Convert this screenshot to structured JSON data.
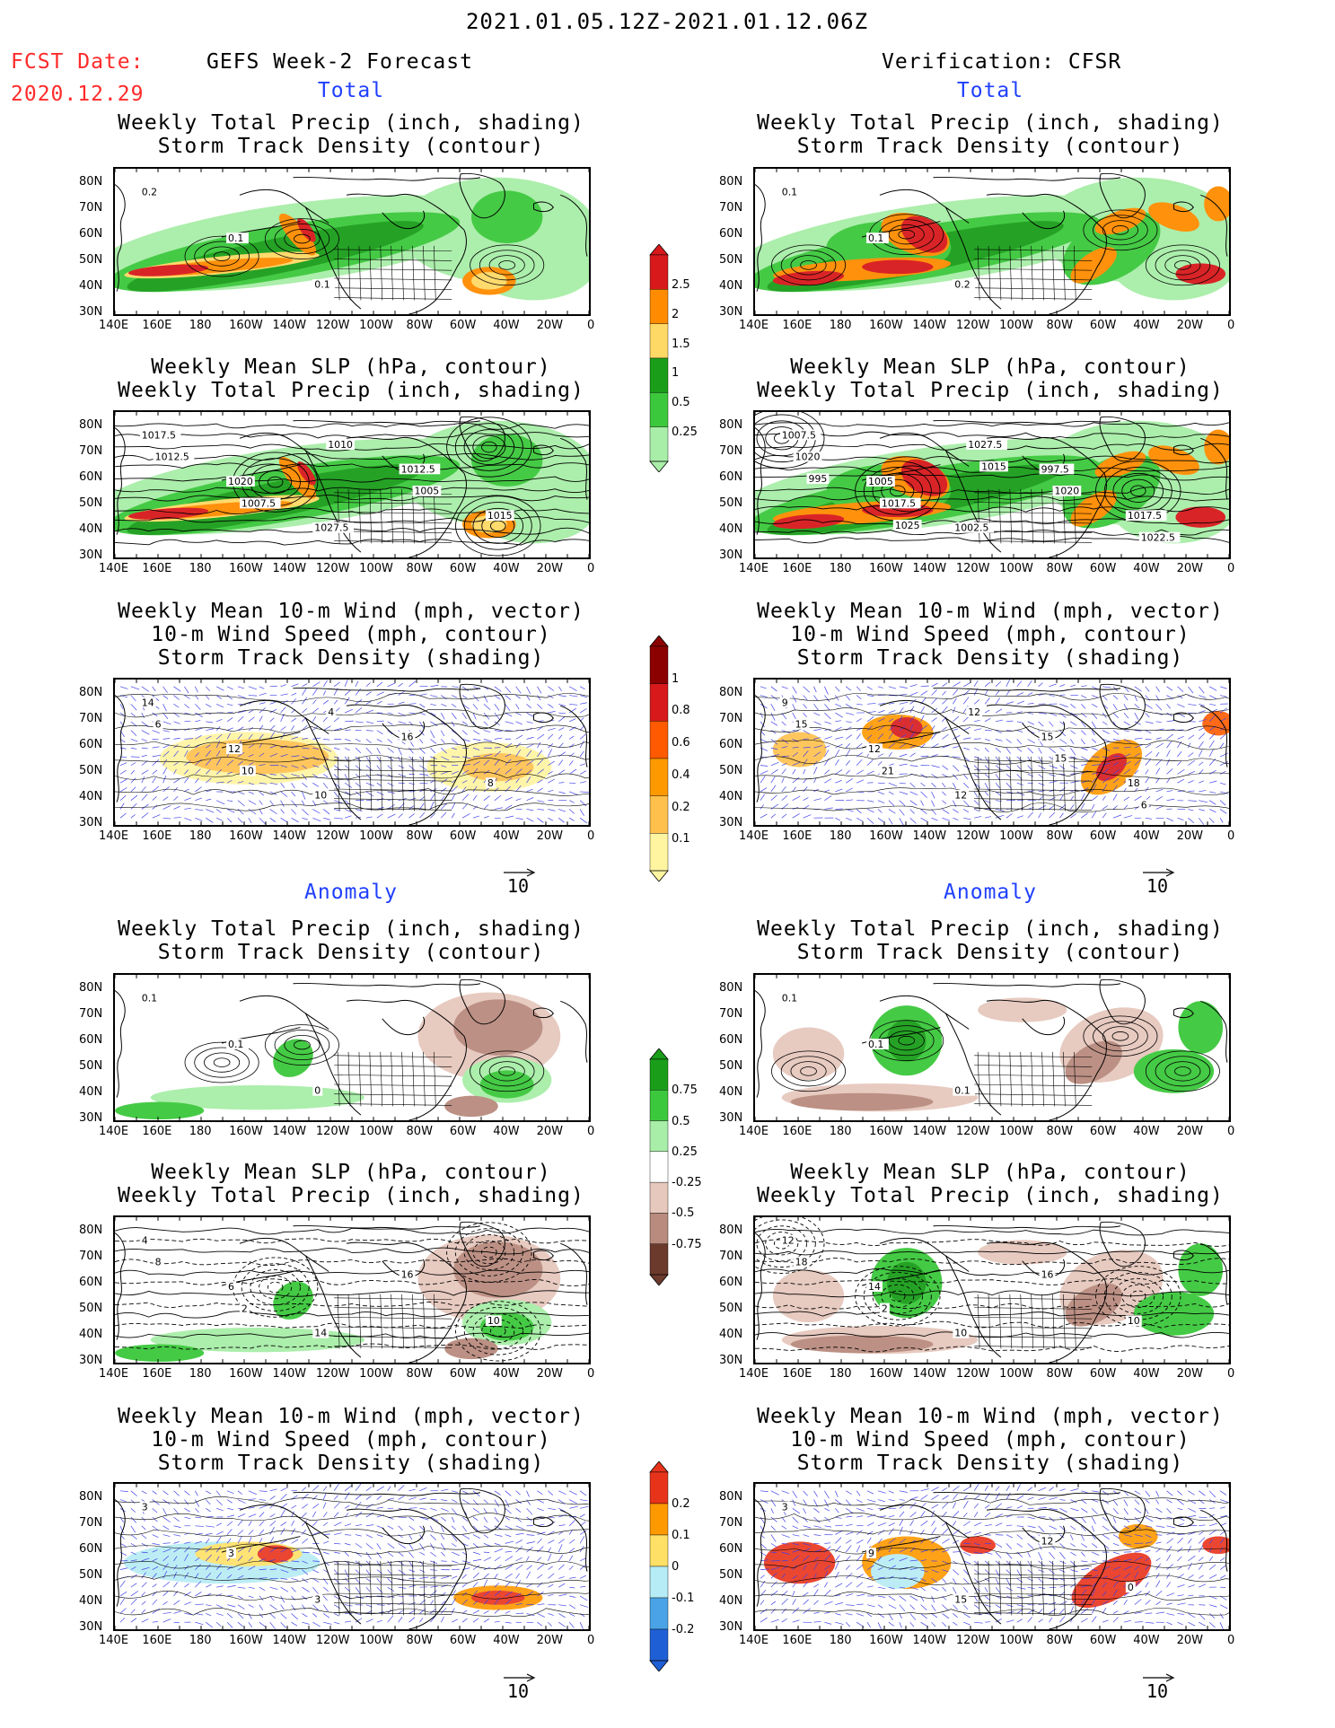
{
  "header": {
    "date_range": "2021.01.05.12Z-2021.01.12.06Z",
    "fcst_label": "FCST Date:",
    "fcst_date": "2020.12.29",
    "left_title": "GEFS Week-2 Forecast",
    "right_title": "Verification: CFSR",
    "total_label": "Total",
    "anomaly_label": "Anomaly"
  },
  "panel_titles": {
    "precip_storm": [
      "Weekly Total Precip (inch, shading)",
      "Storm Track Density (contour)"
    ],
    "slp_precip": [
      "Weekly Mean SLP (hPa, contour)",
      "Weekly Total Precip (inch, shading)"
    ],
    "wind_storm": [
      "Weekly Mean 10-m Wind (mph, vector)",
      "10-m Wind Speed (mph, contour)",
      "Storm Track Density (shading)"
    ]
  },
  "axes": {
    "lat_labels": [
      "80N",
      "70N",
      "60N",
      "50N",
      "40N",
      "30N"
    ],
    "lon_labels": [
      "140E",
      "160E",
      "180",
      "160W",
      "140W",
      "120W",
      "100W",
      "80W",
      "60W",
      "40W",
      "20W",
      "0"
    ]
  },
  "reference_vector": "10",
  "colorbars": {
    "total_precip": {
      "labels": [
        "2.5",
        "2",
        "1.5",
        "1",
        "0.5",
        "0.25"
      ],
      "colors": [
        "#d7191c",
        "#ff8c00",
        "#ffd966",
        "#1a9e1a",
        "#3cc83c",
        "#a8eea8"
      ]
    },
    "total_storm": {
      "labels": [
        "1",
        "0.8",
        "0.6",
        "0.4",
        "0.2",
        "0.1"
      ],
      "colors": [
        "#8b0000",
        "#d7191c",
        "#ff5a00",
        "#ff9900",
        "#ffc04c",
        "#fff5a0"
      ]
    },
    "anom_precip": {
      "labels": [
        "0.75",
        "0.5",
        "0.25",
        "-0.25",
        "-0.5",
        "-0.75"
      ],
      "colors": [
        "#1a9e1a",
        "#3cc83c",
        "#a8eea8",
        "#ffffff",
        "#e6c8bd",
        "#b98b7e",
        "#6b3a2c"
      ]
    },
    "anom_storm": {
      "labels": [
        "0.2",
        "0.1",
        "0",
        "-0.1",
        "-0.2"
      ],
      "colors": [
        "#e8331b",
        "#ff9900",
        "#ffe066",
        "#b5ecf5",
        "#4aa3e6",
        "#1f5fd6"
      ]
    }
  },
  "map_labels": {
    "fc_total_precip": [
      "0.2",
      "0.1",
      "0.1"
    ],
    "obs_total_precip": [
      "0.1",
      "0.1",
      "0.2"
    ],
    "fc_total_slp": [
      "1017.5",
      "1020",
      "1027.5",
      "1012.5",
      "1015",
      "1012.5",
      "1007.5",
      "1010",
      "1005"
    ],
    "obs_total_slp": [
      "1007.5",
      "1005",
      "1002.5",
      "997.5",
      "1017.5",
      "1020",
      "1017.5",
      "1027.5",
      "1020",
      "1022.5",
      "995",
      "1025",
      "1015"
    ],
    "fc_total_wind": [
      "14",
      "12",
      "10",
      "16",
      "8",
      "6",
      "10",
      "4"
    ],
    "obs_total_wind": [
      "9",
      "12",
      "12",
      "15",
      "18",
      "15",
      "21",
      "12",
      "15",
      "6"
    ],
    "fc_anom_precip": [
      "0.1",
      "0.1",
      "0"
    ],
    "obs_anom_precip": [
      "0.1",
      "0.1",
      "0.1"
    ],
    "fc_anom_slp": [
      "4",
      "6",
      "14",
      "16",
      "10",
      "8",
      "2"
    ],
    "obs_anom_slp": [
      "12",
      "14",
      "10",
      "16",
      "10",
      "18",
      "2"
    ],
    "fc_anom_wind": [
      "3",
      "3",
      "3"
    ],
    "obs_anom_wind": [
      "3",
      "9",
      "15",
      "12",
      "0"
    ]
  }
}
